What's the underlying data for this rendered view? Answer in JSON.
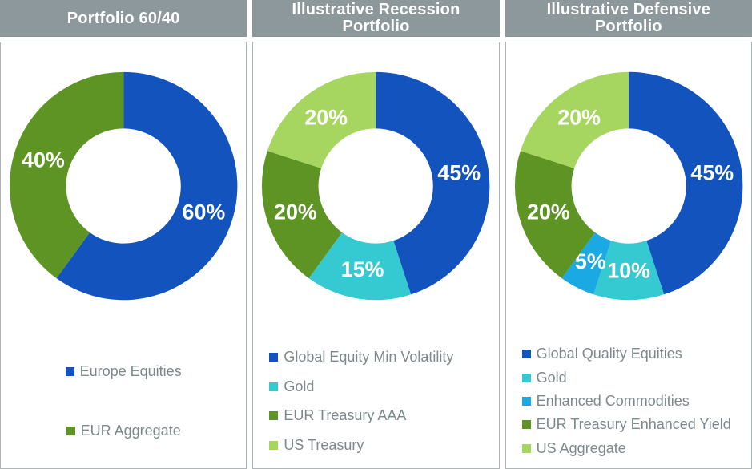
{
  "page": {
    "header_bg": "#8C989B",
    "header_text_color": "#FFFFFF",
    "panel_border_color": "#AEB6B8",
    "legend_text_color": "#7D898C",
    "slice_label_color": "#FFFFFF"
  },
  "chart_data": [
    {
      "type": "pie",
      "subtype": "donut",
      "title": "Portfolio 60/40",
      "labels": [
        "Europe Equities",
        "EUR Aggregate"
      ],
      "values": [
        60,
        40
      ],
      "data_labels": [
        "60%",
        "40%"
      ],
      "colors": [
        "#1253BD",
        "#5E9423"
      ],
      "legend_position": "bottom",
      "start_angle_deg": 0,
      "direction": "clockwise"
    },
    {
      "type": "pie",
      "subtype": "donut",
      "title": "Illustrative Recession Portfolio",
      "labels": [
        "Global Equity Min Volatility",
        "Gold",
        "EUR Treasury AAA",
        "US Treasury"
      ],
      "values": [
        45,
        15,
        20,
        20
      ],
      "data_labels": [
        "45%",
        "15%",
        "20%",
        "20%"
      ],
      "colors": [
        "#1253BD",
        "#35CAD1",
        "#5E9423",
        "#A6D65F"
      ],
      "legend_position": "bottom",
      "start_angle_deg": 0,
      "direction": "clockwise"
    },
    {
      "type": "pie",
      "subtype": "donut",
      "title": "Illustrative Defensive Portfolio",
      "labels": [
        "Global Quality Equities",
        "Gold",
        "Enhanced Commodities",
        "EUR Treasury Enhanced Yield",
        "US Aggregate"
      ],
      "values": [
        45,
        10,
        5,
        20,
        20
      ],
      "data_labels": [
        "45%",
        "10%",
        "5%",
        "20%",
        "20%"
      ],
      "colors": [
        "#1253BD",
        "#35CAD1",
        "#1BA9E3",
        "#5E9423",
        "#A6D65F"
      ],
      "legend_position": "bottom",
      "start_angle_deg": 0,
      "direction": "clockwise"
    }
  ]
}
